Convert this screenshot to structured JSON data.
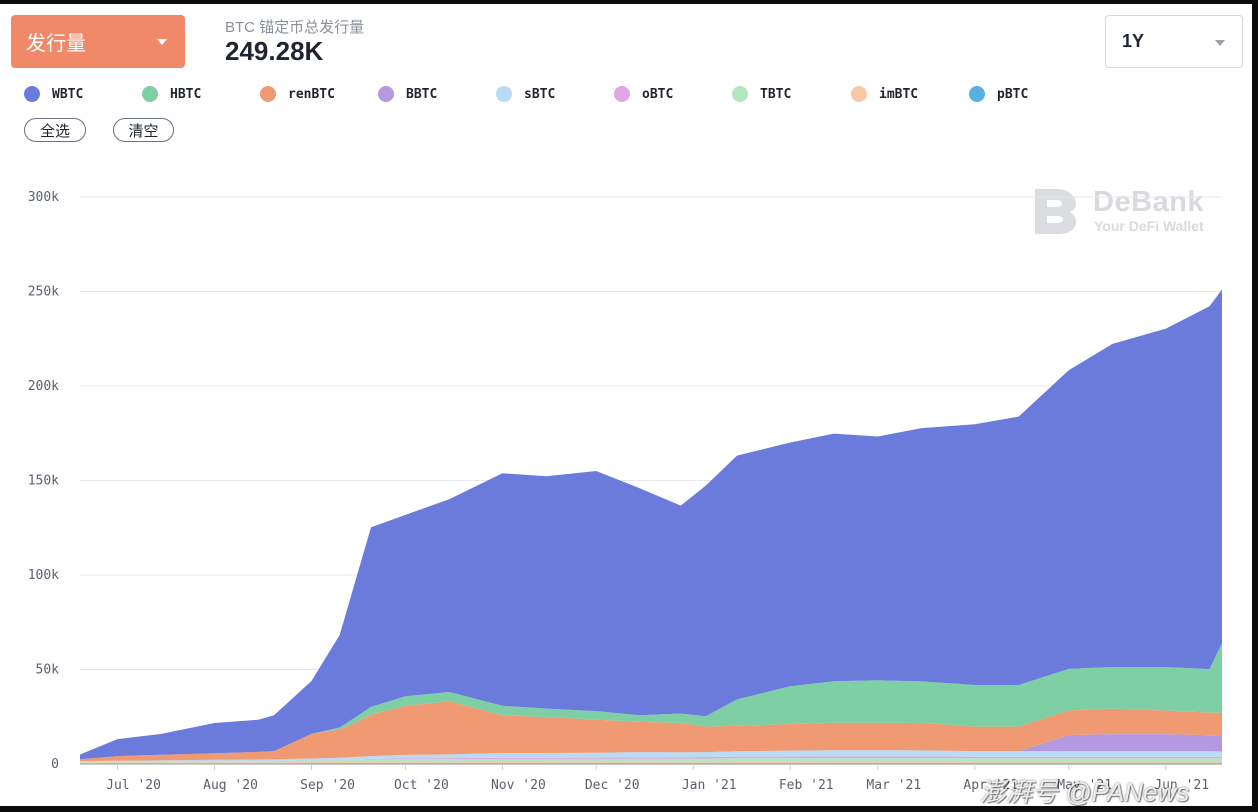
{
  "header": {
    "metric_button_label": "发行量",
    "supply_label": "BTC 锚定币总发行量",
    "supply_value": "249.28K",
    "range_value": "1Y"
  },
  "legend": {
    "items": [
      {
        "label": "WBTC",
        "color": "#6a7bdc"
      },
      {
        "label": "HBTC",
        "color": "#7fcfa4"
      },
      {
        "label": "renBTC",
        "color": "#ef9a72"
      },
      {
        "label": "BBTC",
        "color": "#b39ae0"
      },
      {
        "label": "sBTC",
        "color": "#b9dcf5"
      },
      {
        "label": "oBTC",
        "color": "#e0a6e6"
      },
      {
        "label": "TBTC",
        "color": "#b2e6c0"
      },
      {
        "label": "imBTC",
        "color": "#f6c8a6"
      },
      {
        "label": "pBTC",
        "color": "#5ab0e0"
      }
    ],
    "select_all_label": "全选",
    "clear_label": "清空"
  },
  "watermark": {
    "title": "DeBank",
    "subtitle": "Your DeFi Wallet"
  },
  "credit": "澎湃号 @PANews",
  "chart_data": {
    "type": "area",
    "stacked": true,
    "x": [
      "2020-06-19",
      "2020-07-01",
      "2020-07-15",
      "2020-08-01",
      "2020-08-15",
      "2020-08-20",
      "2020-09-01",
      "2020-09-10",
      "2020-09-15",
      "2020-09-20",
      "2020-10-01",
      "2020-10-15",
      "2020-11-01",
      "2020-11-15",
      "2020-12-01",
      "2020-12-15",
      "2020-12-28",
      "2021-01-05",
      "2021-01-15",
      "2021-02-01",
      "2021-02-15",
      "2021-03-01",
      "2021-03-15",
      "2021-04-01",
      "2021-04-15",
      "2021-05-01",
      "2021-05-15",
      "2021-06-01",
      "2021-06-15",
      "2021-06-19"
    ],
    "series": [
      {
        "name": "pBTC",
        "values": [
          300,
          300,
          300,
          400,
          400,
          400,
          500,
          500,
          500,
          500,
          500,
          500,
          500,
          500,
          500,
          500,
          500,
          500,
          500,
          500,
          500,
          500,
          500,
          500,
          500,
          500,
          500,
          500,
          500,
          500
        ]
      },
      {
        "name": "imBTC",
        "values": [
          500,
          500,
          500,
          500,
          500,
          500,
          500,
          500,
          500,
          500,
          500,
          500,
          500,
          500,
          500,
          500,
          500,
          500,
          500,
          500,
          500,
          500,
          500,
          500,
          500,
          500,
          500,
          500,
          500,
          500
        ]
      },
      {
        "name": "TBTC",
        "values": [
          200,
          300,
          400,
          500,
          600,
          700,
          900,
          1000,
          1200,
          1400,
          1500,
          1500,
          1600,
          1600,
          1700,
          1800,
          1800,
          1900,
          2000,
          2000,
          2100,
          2100,
          2100,
          2000,
          2000,
          2000,
          2000,
          2000,
          2000,
          2000
        ]
      },
      {
        "name": "oBTC",
        "values": [
          0,
          0,
          0,
          0,
          0,
          0,
          0,
          100,
          200,
          300,
          500,
          600,
          700,
          700,
          700,
          800,
          800,
          800,
          900,
          900,
          900,
          900,
          900,
          800,
          800,
          800,
          800,
          800,
          800,
          800
        ]
      },
      {
        "name": "sBTC",
        "values": [
          500,
          600,
          700,
          800,
          900,
          900,
          1000,
          1200,
          1300,
          1500,
          1800,
          2000,
          2500,
          2500,
          2600,
          2700,
          2600,
          2600,
          2800,
          3200,
          3300,
          3300,
          3200,
          3000,
          3000,
          3000,
          3000,
          3000,
          2900,
          2800
        ]
      },
      {
        "name": "BBTC",
        "values": [
          0,
          0,
          0,
          0,
          0,
          0,
          0,
          0,
          0,
          0,
          0,
          0,
          0,
          0,
          0,
          0,
          0,
          0,
          0,
          0,
          0,
          0,
          0,
          0,
          0,
          8500,
          9000,
          9000,
          8500,
          8500
        ]
      },
      {
        "name": "renBTC",
        "values": [
          1000,
          2500,
          3000,
          3500,
          4000,
          4300,
          13000,
          15000,
          18000,
          22000,
          26000,
          28000,
          20000,
          19000,
          17500,
          16000,
          15500,
          13500,
          13500,
          14000,
          14500,
          14500,
          14500,
          13000,
          13000,
          13000,
          13500,
          12500,
          12000,
          12000
        ]
      },
      {
        "name": "HBTC",
        "values": [
          0,
          0,
          0,
          0,
          0,
          0,
          0,
          1000,
          3000,
          4000,
          5000,
          5000,
          5000,
          4500,
          4500,
          3500,
          5000,
          5500,
          14000,
          20000,
          22000,
          22500,
          22000,
          22000,
          22000,
          22000,
          22000,
          23000,
          23000,
          37000
        ]
      },
      {
        "name": "WBTC",
        "values": [
          2500,
          9000,
          11000,
          16000,
          17000,
          19000,
          28000,
          49000,
          72000,
          95000,
          96000,
          102000,
          123000,
          123000,
          127000,
          120000,
          110000,
          122000,
          129000,
          129000,
          131000,
          129000,
          134000,
          138000,
          142000,
          158000,
          171000,
          179000,
          192000,
          187000
        ]
      }
    ],
    "ylim": [
      0,
      300000
    ],
    "yticks": [
      "0",
      "50k",
      "100k",
      "150k",
      "200k",
      "250k",
      "300k"
    ],
    "ytick_values": [
      0,
      50000,
      100000,
      150000,
      200000,
      250000,
      300000
    ],
    "xticks": [
      {
        "label": "Jul '20",
        "date": "2020-07-01"
      },
      {
        "label": "Aug '20",
        "date": "2020-08-01"
      },
      {
        "label": "Sep '20",
        "date": "2020-09-01"
      },
      {
        "label": "Oct '20",
        "date": "2020-10-01"
      },
      {
        "label": "Nov '20",
        "date": "2020-11-01"
      },
      {
        "label": "Dec '20",
        "date": "2020-12-01"
      },
      {
        "label": "Jan '21",
        "date": "2021-01-01"
      },
      {
        "label": "Feb '21",
        "date": "2021-02-01"
      },
      {
        "label": "Mar '21",
        "date": "2021-03-01"
      },
      {
        "label": "Apr '21",
        "date": "2021-04-01"
      },
      {
        "label": "May '21",
        "date": "2021-05-01"
      },
      {
        "label": "Jun '21",
        "date": "2021-06-01"
      }
    ],
    "grid": true,
    "legend_position": "top-left"
  }
}
